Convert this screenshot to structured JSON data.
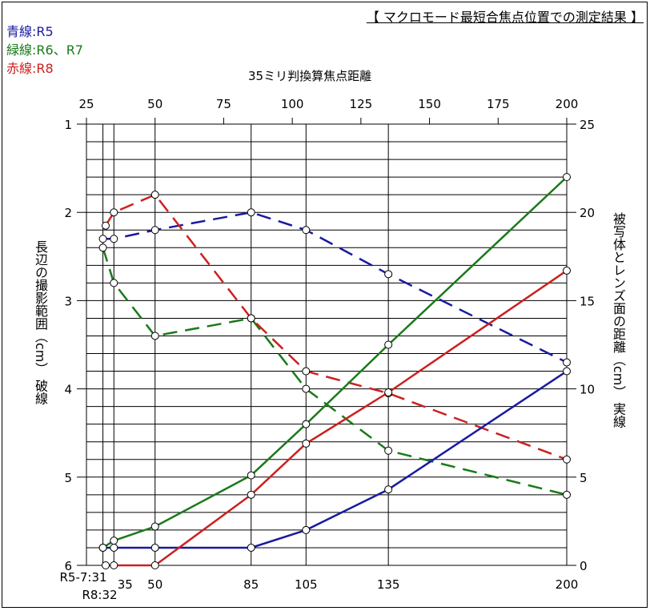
{
  "chart_data": {
    "type": "line",
    "title": "【 マクロモード最短合焦点位置での測定結果 】",
    "legend": [
      {
        "text": "青線:R5",
        "color": "#1a1aa0"
      },
      {
        "text": "緑線:R6、R7",
        "color": "#1a7a1a"
      },
      {
        "text": "赤線:R8",
        "color": "#cc2020"
      }
    ],
    "xlabel": "35ミリ判換算焦点距離",
    "ylabel_left": "長辺の撮影範囲（cm） 破線",
    "ylabel_right": "被写体とレンズ面の距離（cm） 実線",
    "x_top_ticks": [
      "25",
      "50",
      "75",
      "100",
      "125",
      "150",
      "175",
      "200"
    ],
    "x_range": [
      25,
      200
    ],
    "x_bottom_ticks": [
      "R5-7:31",
      "R8:32",
      "35",
      "50",
      "85",
      "105",
      "135",
      "200"
    ],
    "y_left_ticks": [
      "1",
      "2",
      "3",
      "4",
      "5",
      "6"
    ],
    "y_left_range": [
      1,
      6
    ],
    "y_left_inverted": true,
    "y_right_ticks": [
      "0",
      "5",
      "10",
      "15",
      "20",
      "25"
    ],
    "y_right_range": [
      0,
      25
    ],
    "grid": true,
    "series": [
      {
        "name": "R5",
        "axis": "left",
        "style": "dashed",
        "color": "#1a1aa0",
        "x": [
          31,
          35,
          50,
          85,
          105,
          135,
          200
        ],
        "y": [
          2.3,
          2.3,
          2.2,
          2.0,
          2.2,
          2.7,
          3.7
        ]
      },
      {
        "name": "R6、R7",
        "axis": "left",
        "style": "dashed",
        "color": "#1a7a1a",
        "x": [
          31,
          35,
          50,
          85,
          105,
          135,
          200
        ],
        "y": [
          2.4,
          2.8,
          3.4,
          3.2,
          4.0,
          4.7,
          5.2
        ]
      },
      {
        "name": "R8",
        "axis": "left",
        "style": "dashed",
        "color": "#cc2020",
        "x": [
          32,
          35,
          50,
          85,
          105,
          135,
          200
        ],
        "y": [
          2.15,
          2.0,
          1.8,
          3.2,
          3.8,
          4.05,
          4.8
        ]
      },
      {
        "name": "R5",
        "axis": "right",
        "style": "solid",
        "color": "#1a1aa0",
        "x": [
          31,
          35,
          50,
          85,
          105,
          135,
          200
        ],
        "y": [
          1.0,
          1.0,
          1.0,
          1.0,
          2.0,
          4.3,
          11.0
        ]
      },
      {
        "name": "R6、R7",
        "axis": "right",
        "style": "solid",
        "color": "#1a7a1a",
        "x": [
          31,
          35,
          50,
          85,
          105,
          135,
          200
        ],
        "y": [
          1.0,
          1.4,
          2.2,
          5.1,
          8.0,
          12.5,
          22.0
        ]
      },
      {
        "name": "R8",
        "axis": "right",
        "style": "solid",
        "color": "#cc2020",
        "x": [
          32,
          35,
          50,
          85,
          105,
          135,
          200
        ],
        "y": [
          0,
          0,
          0,
          4.0,
          6.9,
          9.8,
          16.7
        ]
      }
    ]
  }
}
